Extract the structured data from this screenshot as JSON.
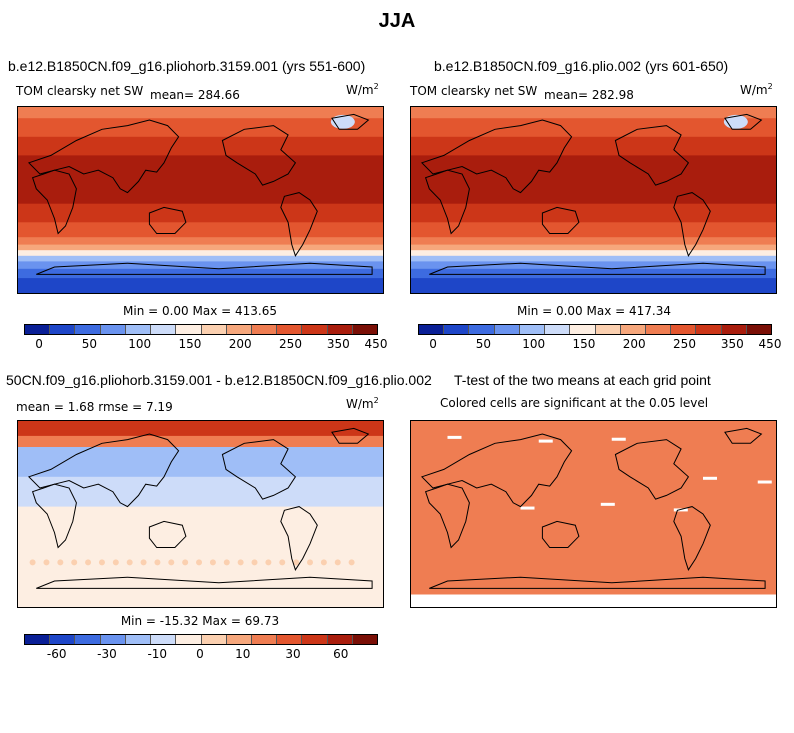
{
  "page": {
    "title": "JJA"
  },
  "colors": {
    "scale": [
      "#0a1f96",
      "#1e46c8",
      "#3d6be0",
      "#6a93ef",
      "#9fbef7",
      "#cddcf9",
      "#fdeee2",
      "#fbd0b0",
      "#f6a77c",
      "#ef7d52",
      "#e3562f",
      "#cc3618",
      "#a91d0d",
      "#7a0f06"
    ],
    "coast": "#000000"
  },
  "panels": [
    {
      "title": "b.e12.B1850CN.f09_g16.pliohorb.3159.001 (yrs 551-600)",
      "variable": "TOM clearsky net SW",
      "mean_label": "mean= 284.66",
      "units": "W/m",
      "units_sup": "2",
      "minmax": "Min =   0.00 Max = 413.65"
    },
    {
      "title": "b.e12.B1850CN.f09_g16.plio.002 (yrs 601-650)",
      "variable": "TOM clearsky net SW",
      "mean_label": "mean= 282.98",
      "units": "W/m",
      "units_sup": "2",
      "minmax": "Min =   0.00 Max = 417.34"
    },
    {
      "title": "50CN.f09_g16.pliohorb.3159.001 - b.e12.B1850CN.f09_g16.plio.002",
      "stats": "mean =    1.68     rmse =    7.19",
      "units": "W/m",
      "units_sup": "2",
      "minmax": "Min = -15.32 Max =  69.73"
    },
    {
      "title": "T-test of the two means at each grid point",
      "subtitle": "Colored cells are significant at the 0.05 level"
    }
  ],
  "chart_data": [
    {
      "type": "heatmap",
      "title": "b.e12.B1850CN.f09_g16.pliohorb.3159.001 (yrs 551-600)",
      "variable": "TOM clearsky net SW",
      "units": "W/m2",
      "mean": 284.66,
      "min": 0.0,
      "max": 413.65,
      "colorbar_ticks": [
        "0",
        "50",
        "100",
        "150",
        "200",
        "250",
        "350",
        "450"
      ]
    },
    {
      "type": "heatmap",
      "title": "b.e12.B1850CN.f09_g16.plio.002 (yrs 601-650)",
      "variable": "TOM clearsky net SW",
      "units": "W/m2",
      "mean": 282.98,
      "min": 0.0,
      "max": 417.34,
      "colorbar_ticks": [
        "0",
        "50",
        "100",
        "150",
        "200",
        "250",
        "350",
        "450"
      ]
    },
    {
      "type": "heatmap",
      "title": "50CN.f09_g16.pliohorb.3159.001 - b.e12.B1850CN.f09_g16.plio.002",
      "units": "W/m2",
      "mean": 1.68,
      "rmse": 7.19,
      "min": -15.32,
      "max": 69.73,
      "colorbar_ticks": [
        "-60",
        "-30",
        "-10",
        "0",
        "10",
        "30",
        "60"
      ]
    },
    {
      "type": "heatmap",
      "title": "T-test of the two means at each grid point",
      "subtitle": "Colored cells are significant at the 0.05 level"
    }
  ]
}
